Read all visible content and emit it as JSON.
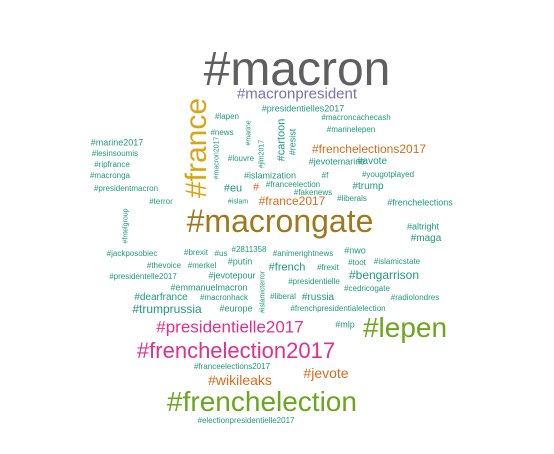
{
  "colors": {
    "gray": "#5f5f5f",
    "gold": "#d8a514",
    "olive": "#a0781c",
    "purple": "#7872b4",
    "teal": "#1f9a7c",
    "orange": "#d96a1a",
    "magenta": "#e22f8a",
    "green": "#6aa61e"
  },
  "words": [
    {
      "text": "#macron",
      "color": "gray"
    },
    {
      "text": "#macronpresident",
      "color": "purple"
    },
    {
      "text": "#france",
      "color": "gold"
    },
    {
      "text": "#presidentielles2017",
      "color": "teal"
    },
    {
      "text": "#lapen",
      "color": "teal"
    },
    {
      "text": "#macroncachecash",
      "color": "teal"
    },
    {
      "text": "#marinelepen",
      "color": "teal"
    },
    {
      "text": "#news",
      "color": "teal"
    },
    {
      "text": "#marine2017",
      "color": "teal"
    },
    {
      "text": "#lesinsoumis",
      "color": "teal"
    },
    {
      "text": "#ripfrance",
      "color": "teal"
    },
    {
      "text": "#macronga",
      "color": "teal"
    },
    {
      "text": "#presidentmacron",
      "color": "teal"
    },
    {
      "text": "#frenchelections2017",
      "color": "orange"
    },
    {
      "text": "#jevotemarine",
      "color": "teal"
    },
    {
      "text": "#avote",
      "color": "teal"
    },
    {
      "text": "#yougotplayed",
      "color": "teal"
    },
    {
      "text": "#trump",
      "color": "teal"
    },
    {
      "text": "#frenchelections",
      "color": "teal"
    },
    {
      "text": "#cartoon",
      "color": "teal"
    },
    {
      "text": "#resist",
      "color": "teal"
    },
    {
      "text": "#louvre",
      "color": "teal"
    },
    {
      "text": "#marine",
      "color": "teal"
    },
    {
      "text": "#jlm2017",
      "color": "teal"
    },
    {
      "text": "#macron2017",
      "color": "teal"
    },
    {
      "text": "#islamization",
      "color": "teal"
    },
    {
      "text": "#f",
      "color": "teal"
    },
    {
      "text": "#franceelection",
      "color": "teal"
    },
    {
      "text": "#fakenews",
      "color": "teal"
    },
    {
      "text": "#liberals",
      "color": "teal"
    },
    {
      "text": "#eu",
      "color": "teal"
    },
    {
      "text": "#",
      "color": "orange"
    },
    {
      "text": "#islam",
      "color": "teal"
    },
    {
      "text": "#france2017",
      "color": "orange"
    },
    {
      "text": "#terror",
      "color": "teal"
    },
    {
      "text": "#macrongate",
      "color": "olive"
    },
    {
      "text": "#fntelgroup",
      "color": "teal"
    },
    {
      "text": "#altright",
      "color": "teal"
    },
    {
      "text": "#maga",
      "color": "teal"
    },
    {
      "text": "#jackposobiec",
      "color": "teal"
    },
    {
      "text": "#brexit",
      "color": "teal"
    },
    {
      "text": "#us",
      "color": "teal"
    },
    {
      "text": "#2811358",
      "color": "teal"
    },
    {
      "text": "#animerightnews",
      "color": "teal"
    },
    {
      "text": "#nwo",
      "color": "teal"
    },
    {
      "text": "#islamicstate",
      "color": "teal"
    },
    {
      "text": "#thevoice",
      "color": "teal"
    },
    {
      "text": "#merkel",
      "color": "teal"
    },
    {
      "text": "#putin",
      "color": "teal"
    },
    {
      "text": "#french",
      "color": "teal"
    },
    {
      "text": "#frexit",
      "color": "teal"
    },
    {
      "text": "#toot",
      "color": "teal"
    },
    {
      "text": "#presidentelle2017",
      "color": "teal"
    },
    {
      "text": "#jevotepour",
      "color": "teal"
    },
    {
      "text": "#presidentielle",
      "color": "teal"
    },
    {
      "text": "#bengarrison",
      "color": "teal"
    },
    {
      "text": "#emmanuelmacron",
      "color": "teal"
    },
    {
      "text": "#cedricogate",
      "color": "teal"
    },
    {
      "text": "#dearfrance",
      "color": "teal"
    },
    {
      "text": "#macronhack",
      "color": "teal"
    },
    {
      "text": "#liberal",
      "color": "teal"
    },
    {
      "text": "#russia",
      "color": "teal"
    },
    {
      "text": "#radiolondres",
      "color": "teal"
    },
    {
      "text": "#trumprussia",
      "color": "teal"
    },
    {
      "text": "#europe",
      "color": "teal"
    },
    {
      "text": "#frenchpresidentialelection",
      "color": "teal"
    },
    {
      "text": "#islamicterror",
      "color": "teal"
    },
    {
      "text": "#presidentielle2017",
      "color": "magenta"
    },
    {
      "text": "#mlp",
      "color": "teal"
    },
    {
      "text": "#lepen",
      "color": "green"
    },
    {
      "text": "#frenchelection2017",
      "color": "magenta"
    },
    {
      "text": "#franceelections2017",
      "color": "teal"
    },
    {
      "text": "#wikileaks",
      "color": "orange"
    },
    {
      "text": "#jevote",
      "color": "orange"
    },
    {
      "text": "#frenchelection",
      "color": "green"
    },
    {
      "text": "#electionpresidentielle2017",
      "color": "teal"
    }
  ]
}
